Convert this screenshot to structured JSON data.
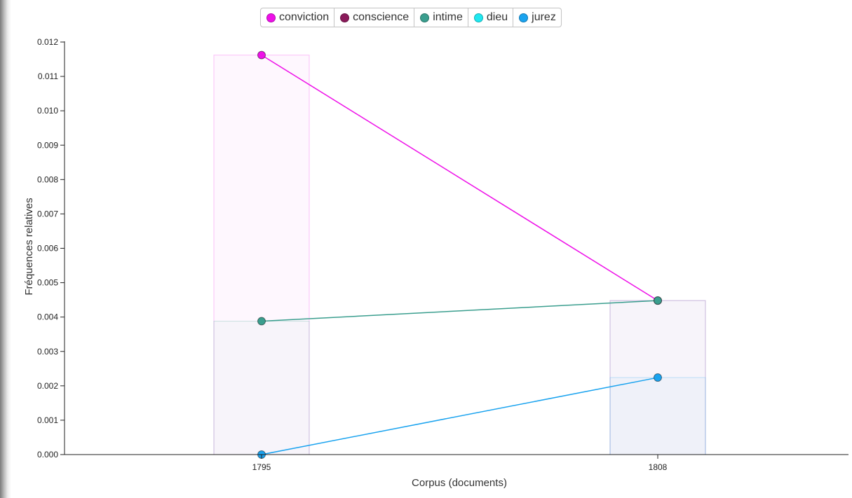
{
  "chart_data": {
    "type": "line",
    "xlabel": "Corpus (documents)",
    "ylabel": "Fréquences relatives",
    "ylim": [
      0,
      0.012
    ],
    "yticks": [
      "0.000",
      "0.001",
      "0.002",
      "0.003",
      "0.004",
      "0.005",
      "0.006",
      "0.007",
      "0.008",
      "0.009",
      "0.010",
      "0.011",
      "0.012"
    ],
    "categories": [
      "1795",
      "1808"
    ],
    "legend_position": "top-center",
    "grid": false,
    "series": [
      {
        "name": "conviction",
        "color": "#ee10e8",
        "values": [
          0.01162,
          0.00448
        ]
      },
      {
        "name": "conscience",
        "color": "#8a1a5a",
        "values": [
          null,
          null
        ]
      },
      {
        "name": "intime",
        "color": "#3a9e8e",
        "values": [
          0.00388,
          0.00448
        ]
      },
      {
        "name": "dieu",
        "color": "#1fe8f0",
        "values": [
          null,
          null
        ]
      },
      {
        "name": "jurez",
        "color": "#1aa3ef",
        "values": [
          0.0,
          0.00224
        ]
      }
    ]
  }
}
